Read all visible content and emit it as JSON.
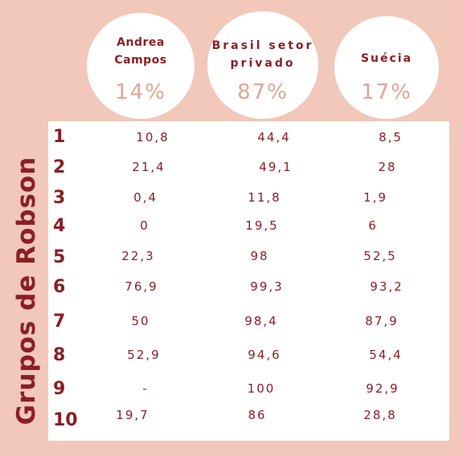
{
  "axis_label": "Grupos de Robson",
  "columns": [
    {
      "name": "Andrea\nCampos",
      "percent": "14%"
    },
    {
      "name": "Brasil setor\nprivado",
      "percent": "87%"
    },
    {
      "name": "Suécia",
      "percent": "17%"
    }
  ],
  "rows": [
    {
      "group": "1",
      "values": [
        "10,8",
        "44,4",
        "8,5"
      ]
    },
    {
      "group": "2",
      "values": [
        "21,4",
        "49,1",
        "28"
      ]
    },
    {
      "group": "3",
      "values": [
        "0,4",
        "11,8",
        "1,9"
      ]
    },
    {
      "group": "4",
      "values": [
        "0",
        "19,5",
        "6"
      ]
    },
    {
      "group": "5",
      "values": [
        "22,3",
        "98",
        "52,5"
      ]
    },
    {
      "group": "6",
      "values": [
        "76,9",
        "99,3",
        "93,2"
      ]
    },
    {
      "group": "7",
      "values": [
        "50",
        "98,4",
        "87,9"
      ]
    },
    {
      "group": "8",
      "values": [
        "52,9",
        "94,6",
        "54,4"
      ]
    },
    {
      "group": "9",
      "values": [
        "-",
        "100",
        "92,9"
      ]
    },
    {
      "group": "10",
      "values": [
        "19,7",
        "86",
        "28,8"
      ]
    }
  ]
}
